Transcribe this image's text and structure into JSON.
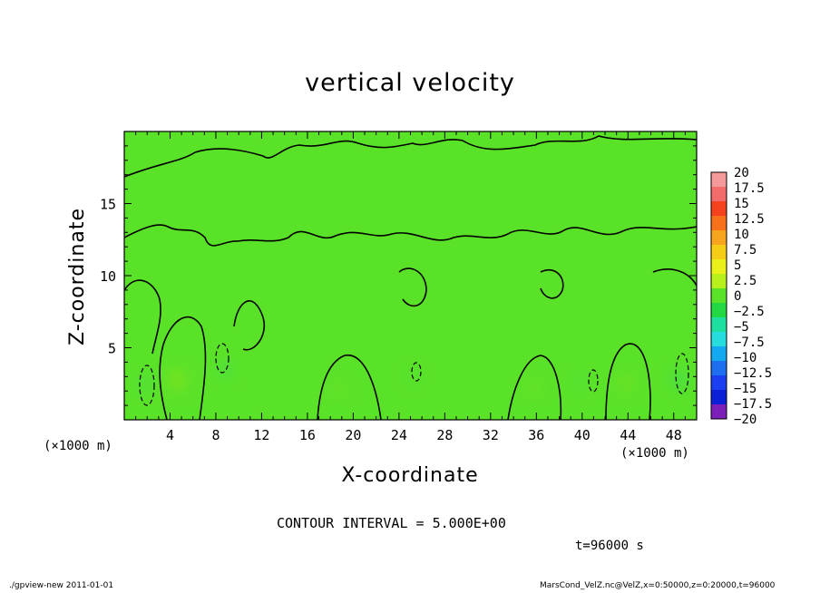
{
  "chart_data": {
    "type": "heatmap",
    "title": "vertical velocity",
    "xlabel": "X-coordinate",
    "ylabel": "Z-coordinate",
    "x_unit": "(×1000 m)",
    "y_unit": "(×1000 m)",
    "xlim": [
      0,
      50
    ],
    "ylim": [
      0,
      20
    ],
    "xticks": [
      "4",
      "8",
      "12",
      "16",
      "20",
      "24",
      "28",
      "32",
      "36",
      "40",
      "44",
      "48"
    ],
    "yticks": [
      "5",
      "10",
      "15"
    ],
    "colorbar_labels": [
      "20",
      "17.5",
      "15",
      "12.5",
      "10",
      "7.5",
      "5",
      "2.5",
      "0",
      "−2.5",
      "−5",
      "−7.5",
      "−10",
      "−12.5",
      "−15",
      "−17.5",
      "−20"
    ],
    "colorbar_colors": [
      "#f59a9a",
      "#f36b6b",
      "#f4421f",
      "#f7701a",
      "#f7a51f",
      "#f5cc16",
      "#eaf01a",
      "#b8f01c",
      "#5ae228",
      "#22d843",
      "#1fdfa0",
      "#26dcdc",
      "#14a8f0",
      "#1e6ef0",
      "#1a3ef0",
      "#0b1fd6",
      "#7b1fb8"
    ],
    "contour_interval": "CONTOUR INTERVAL = 5.000E+00",
    "positive_cells": [
      {
        "x": 4.6,
        "z": 2.8,
        "w": 0.15
      },
      {
        "x": 18.8,
        "z": 2.1,
        "w": 0.07
      },
      {
        "x": 35.8,
        "z": 2.2,
        "w": 0.08
      },
      {
        "x": 43.8,
        "z": 2.6,
        "w": 0.1
      }
    ],
    "negative_cells": [
      {
        "x": 1.8,
        "z": 2.5,
        "w": 0.1
      },
      {
        "x": 8.8,
        "z": 3.5,
        "w": 0.11
      },
      {
        "x": 25.2,
        "z": 3.0,
        "w": 0.06
      },
      {
        "x": 39.8,
        "z": 2.6,
        "w": 0.08
      },
      {
        "x": 48.5,
        "z": 2.8,
        "w": 0.13
      }
    ],
    "background_color": "#5ae228"
  },
  "time_label": "t=96000 s",
  "footer_left": "./gpview-new  2011-01-01",
  "footer_right": "MarsCond_VelZ.nc@VelZ,x=0:50000,z=0:20000,t=96000"
}
